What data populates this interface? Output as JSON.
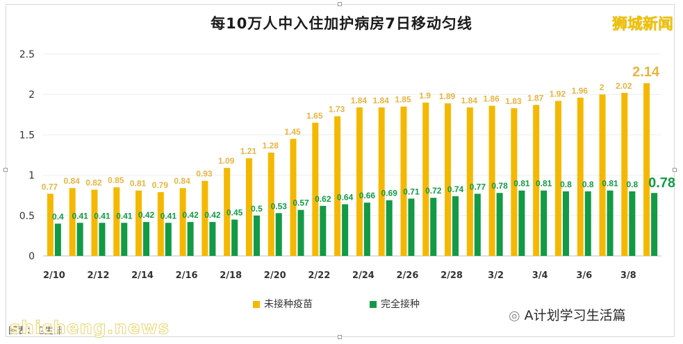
{
  "title": "每10万人中入住加护病房7日移动匀线",
  "brand": "狮城新闻",
  "wechat_account": "A计划学习生活篇",
  "credit": "图表：卫生部",
  "watermark": "shicheng.news",
  "colors": {
    "unvaccinated": "#f5b800",
    "vaccinated": "#129a46",
    "label_unvaccinated": "#e8b440",
    "label_vaccinated": "#129a46"
  },
  "chart_data": {
    "type": "bar",
    "categories": [
      "2/10",
      "2/11",
      "2/12",
      "2/13",
      "2/14",
      "2/15",
      "2/16",
      "2/17",
      "2/18",
      "2/19",
      "2/20",
      "2/21",
      "2/22",
      "2/23",
      "2/24",
      "2/25",
      "2/26",
      "2/27",
      "2/28",
      "3/1",
      "3/2",
      "3/3",
      "3/4",
      "3/5",
      "3/6",
      "3/7",
      "3/8",
      "3/9"
    ],
    "tick_labels": [
      "2/10",
      "2/12",
      "2/14",
      "2/16",
      "2/18",
      "2/20",
      "2/22",
      "2/24",
      "2/26",
      "2/28",
      "3/2",
      "3/4",
      "3/6",
      "3/8"
    ],
    "series": [
      {
        "name": "未接种疫苗",
        "values": [
          0.77,
          0.84,
          0.82,
          0.85,
          0.81,
          0.79,
          0.84,
          0.93,
          1.09,
          1.21,
          1.28,
          1.45,
          1.65,
          1.73,
          1.84,
          1.84,
          1.85,
          1.9,
          1.89,
          1.84,
          1.86,
          1.83,
          1.87,
          1.92,
          1.96,
          2,
          2.02,
          2.14
        ]
      },
      {
        "name": "完全接种",
        "values": [
          0.4,
          0.41,
          0.41,
          0.41,
          0.42,
          0.41,
          0.42,
          0.42,
          0.45,
          0.5,
          0.53,
          0.57,
          0.62,
          0.64,
          0.66,
          0.69,
          0.71,
          0.72,
          0.74,
          0.77,
          0.78,
          0.81,
          0.81,
          0.8,
          0.8,
          0.81,
          0.8,
          0.78
        ]
      }
    ],
    "ylim": [
      0,
      2.5
    ],
    "yticks": [
      "0",
      "0.5",
      "1",
      "1.5",
      "2",
      "2.5"
    ],
    "grid": true,
    "legend": "bottom"
  }
}
